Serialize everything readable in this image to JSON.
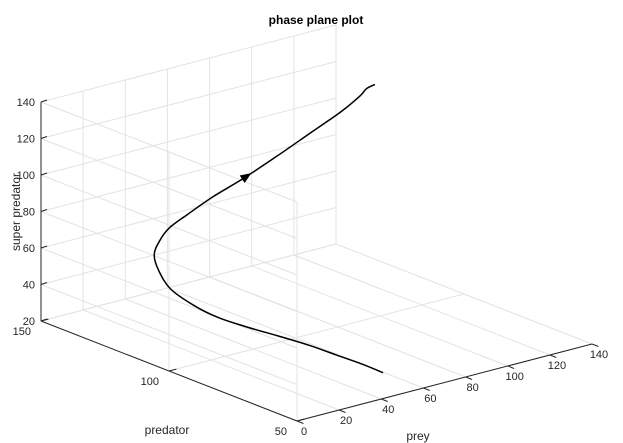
{
  "chart_data": {
    "type": "line3d",
    "title": "phase plane plot",
    "xlabel": "prey",
    "ylabel": "predator",
    "zlabel": "super predator",
    "xlim": [
      0,
      140
    ],
    "ylim": [
      50,
      150
    ],
    "zlim": [
      20,
      140
    ],
    "xticks": [
      0,
      20,
      40,
      60,
      80,
      100,
      120,
      140
    ],
    "yticks": [
      50,
      100,
      150
    ],
    "zticks": [
      20,
      40,
      60,
      80,
      100,
      120,
      140
    ],
    "grid": true,
    "series": [
      {
        "x": [
          53,
          48,
          42,
          36,
          30,
          25,
          21,
          19,
          19,
          22,
          27,
          33,
          40,
          50,
          62,
          76,
          90,
          105,
          118,
          126,
          129,
          133
        ],
        "y": [
          60,
          64,
          69,
          75,
          82,
          90,
          98,
          106,
          115,
          122,
          128,
          131,
          133,
          134,
          134,
          133,
          132,
          131,
          130,
          129,
          129,
          129
        ],
        "z": [
          25,
          29,
          33,
          37,
          40,
          42,
          44,
          47,
          51,
          56,
          60,
          64,
          68,
          72,
          78,
          85,
          93,
          102,
          110,
          117,
          120,
          121
        ],
        "arrow_at_index": 15
      }
    ]
  }
}
